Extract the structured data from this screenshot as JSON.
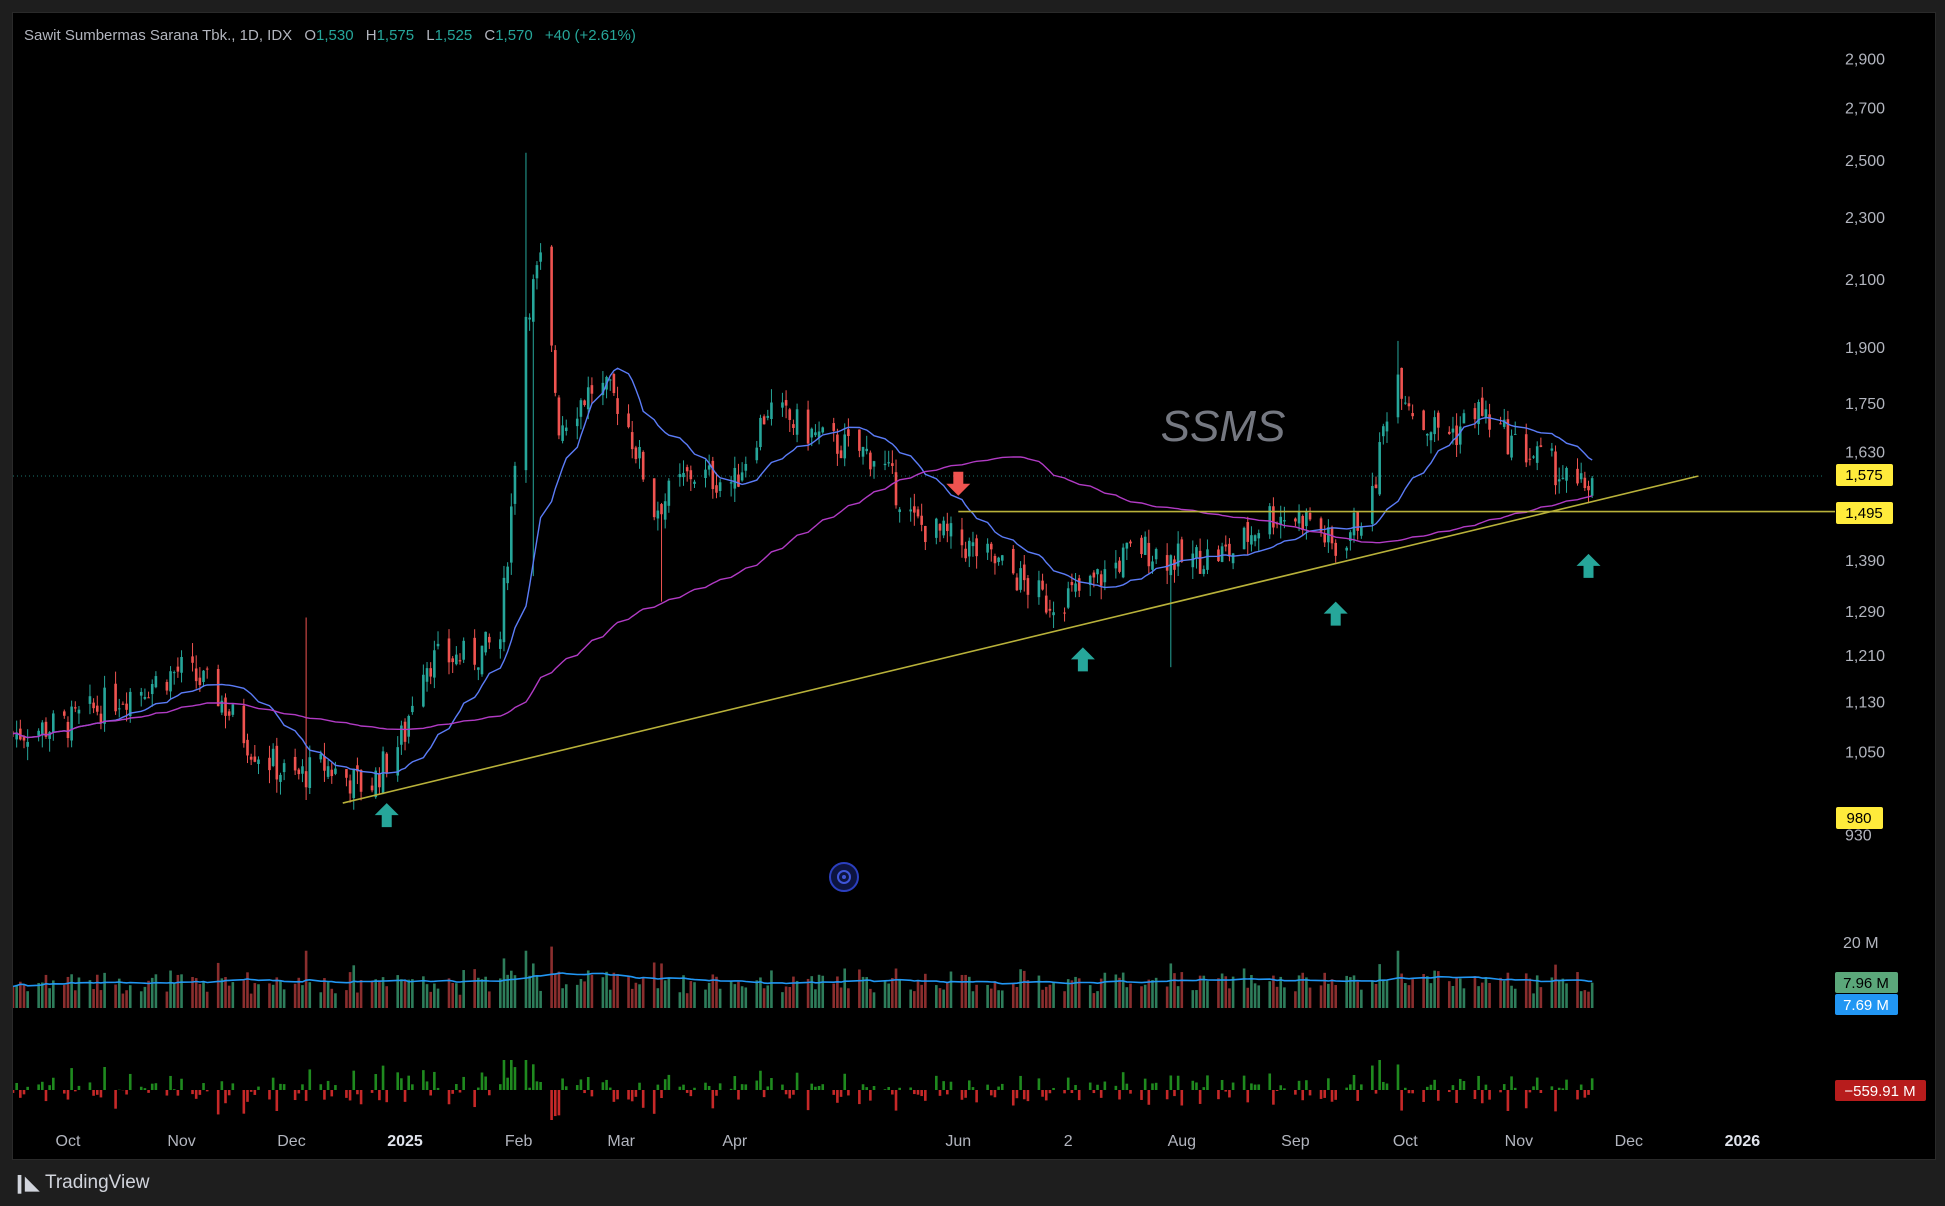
{
  "header": {
    "title": "Sawit Sumbermas Sarana Tbk., 1D, IDX",
    "open_label": "O",
    "open": "1,530",
    "high_label": "H",
    "high": "1,575",
    "low_label": "L",
    "low": "1,525",
    "close_label": "C",
    "close": "1,570",
    "change": "+40 (+2.61%)"
  },
  "watermark": "SSMS",
  "footer": {
    "brand": "TradingView",
    "logo_icon": "tradingview-logo-icon"
  },
  "price_badges": {
    "last": "1,575",
    "level": "1,495",
    "low_mark": "980"
  },
  "volume_badges": {
    "volume": "7.96 M",
    "volume_ma": "7.69 M",
    "volume_axis": "20 M"
  },
  "flow_badge": "−559.91 M",
  "colors": {
    "up": "#26a69a",
    "down": "#ef5350",
    "ma_fast": "#5b7cf7",
    "ma_slow": "#b13bc4",
    "trend": "#b8b13a",
    "badge": "#ffeb3b",
    "vol_ma": "#2196f3"
  },
  "chart_data": {
    "type": "candlestick",
    "y_scale": "log",
    "ylim": [
      880,
      2950
    ],
    "y_ticks": [
      "930",
      "1,050",
      "1,130",
      "1,210",
      "1,290",
      "1,390",
      "1,630",
      "1,750",
      "1,900",
      "2,100",
      "2,300",
      "2,500",
      "2,700",
      "2,900"
    ],
    "x_ticks": [
      "Oct",
      "Nov",
      "Dec",
      "2025",
      "Feb",
      "Mar",
      "Apr",
      "Jun",
      "2",
      "Aug",
      "Sep",
      "Oct",
      "Nov",
      "Dec",
      "2026"
    ],
    "x_tick_dates": [
      "2024-10-01",
      "2024-11-01",
      "2024-12-01",
      "2025-01-01",
      "2025-02-01",
      "2025-03-01",
      "2025-04-01",
      "2025-06-01",
      "2025-07-01",
      "2025-08-01",
      "2025-09-01",
      "2025-10-01",
      "2025-11-01",
      "2025-12-01",
      "2026-01-01"
    ],
    "x_range": [
      "2024-09-16",
      "2026-01-23"
    ],
    "price_anchors": [
      {
        "date": "2024-09-16",
        "close": 1080
      },
      {
        "date": "2024-10-01",
        "close": 1095
      },
      {
        "date": "2024-10-15",
        "close": 1140
      },
      {
        "date": "2024-11-01",
        "close": 1185
      },
      {
        "date": "2024-11-10",
        "close": 1150
      },
      {
        "date": "2024-11-20",
        "close": 1060
      },
      {
        "date": "2024-12-01",
        "close": 1010
      },
      {
        "date": "2024-12-10",
        "close": 1030
      },
      {
        "date": "2024-12-22",
        "close": 995
      },
      {
        "date": "2025-01-01",
        "close": 1080
      },
      {
        "date": "2025-01-05",
        "close": 1200
      },
      {
        "date": "2025-01-20",
        "close": 1210
      },
      {
        "date": "2025-01-27",
        "close": 1240
      },
      {
        "date": "2025-01-30",
        "close": 1500
      },
      {
        "date": "2025-02-03",
        "close": 2000
      },
      {
        "date": "2025-02-07",
        "close": 2150
      },
      {
        "date": "2025-02-12",
        "close": 1700
      },
      {
        "date": "2025-02-22",
        "close": 1800
      },
      {
        "date": "2025-03-01",
        "close": 1750
      },
      {
        "date": "2025-03-10",
        "close": 1500
      },
      {
        "date": "2025-03-20",
        "close": 1580
      },
      {
        "date": "2025-04-01",
        "close": 1560
      },
      {
        "date": "2025-04-10",
        "close": 1740
      },
      {
        "date": "2025-04-25",
        "close": 1660
      },
      {
        "date": "2025-05-10",
        "close": 1620
      },
      {
        "date": "2025-05-20",
        "close": 1470
      },
      {
        "date": "2025-06-01",
        "close": 1430
      },
      {
        "date": "2025-06-15",
        "close": 1370
      },
      {
        "date": "2025-06-25",
        "close": 1310
      },
      {
        "date": "2025-07-05",
        "close": 1330
      },
      {
        "date": "2025-07-20",
        "close": 1420
      },
      {
        "date": "2025-08-01",
        "close": 1390
      },
      {
        "date": "2025-08-15",
        "close": 1410
      },
      {
        "date": "2025-08-25",
        "close": 1490
      },
      {
        "date": "2025-09-05",
        "close": 1480
      },
      {
        "date": "2025-09-12",
        "close": 1410
      },
      {
        "date": "2025-09-22",
        "close": 1520
      },
      {
        "date": "2025-09-28",
        "close": 1850
      },
      {
        "date": "2025-10-05",
        "close": 1700
      },
      {
        "date": "2025-10-15",
        "close": 1680
      },
      {
        "date": "2025-10-20",
        "close": 1740
      },
      {
        "date": "2025-11-01",
        "close": 1640
      },
      {
        "date": "2025-11-10",
        "close": 1600
      },
      {
        "date": "2025-11-17",
        "close": 1540
      },
      {
        "date": "2025-11-21",
        "close": 1570
      }
    ],
    "spikes": [
      {
        "date": "2024-12-05",
        "high": 1280
      },
      {
        "date": "2025-02-02",
        "high": 2530
      },
      {
        "date": "2025-02-05",
        "low": 1360
      },
      {
        "date": "2025-03-12",
        "low": 1310
      },
      {
        "date": "2025-07-29",
        "low": 1190
      },
      {
        "date": "2025-09-28",
        "high": 1920
      }
    ],
    "last_ohlc": {
      "open": 1530,
      "high": 1575,
      "low": 1525,
      "close": 1570
    },
    "resistance": {
      "price": 1495,
      "from": "2025-06-01"
    },
    "trendline": {
      "start": {
        "date": "2024-12-15",
        "price": 975
      },
      "end": {
        "date": "2025-12-20",
        "price": 1575
      }
    },
    "markers": [
      {
        "type": "up",
        "date": "2024-12-27",
        "price": 975
      },
      {
        "type": "down",
        "date": "2025-06-01",
        "price": 1530
      },
      {
        "type": "up",
        "date": "2025-07-05",
        "price": 1225
      },
      {
        "type": "up",
        "date": "2025-09-12",
        "price": 1310
      },
      {
        "type": "up",
        "date": "2025-11-20",
        "price": 1405
      }
    ],
    "volume": {
      "max": 22,
      "unit": "M",
      "avg": 7.69,
      "last": 7.96
    }
  }
}
